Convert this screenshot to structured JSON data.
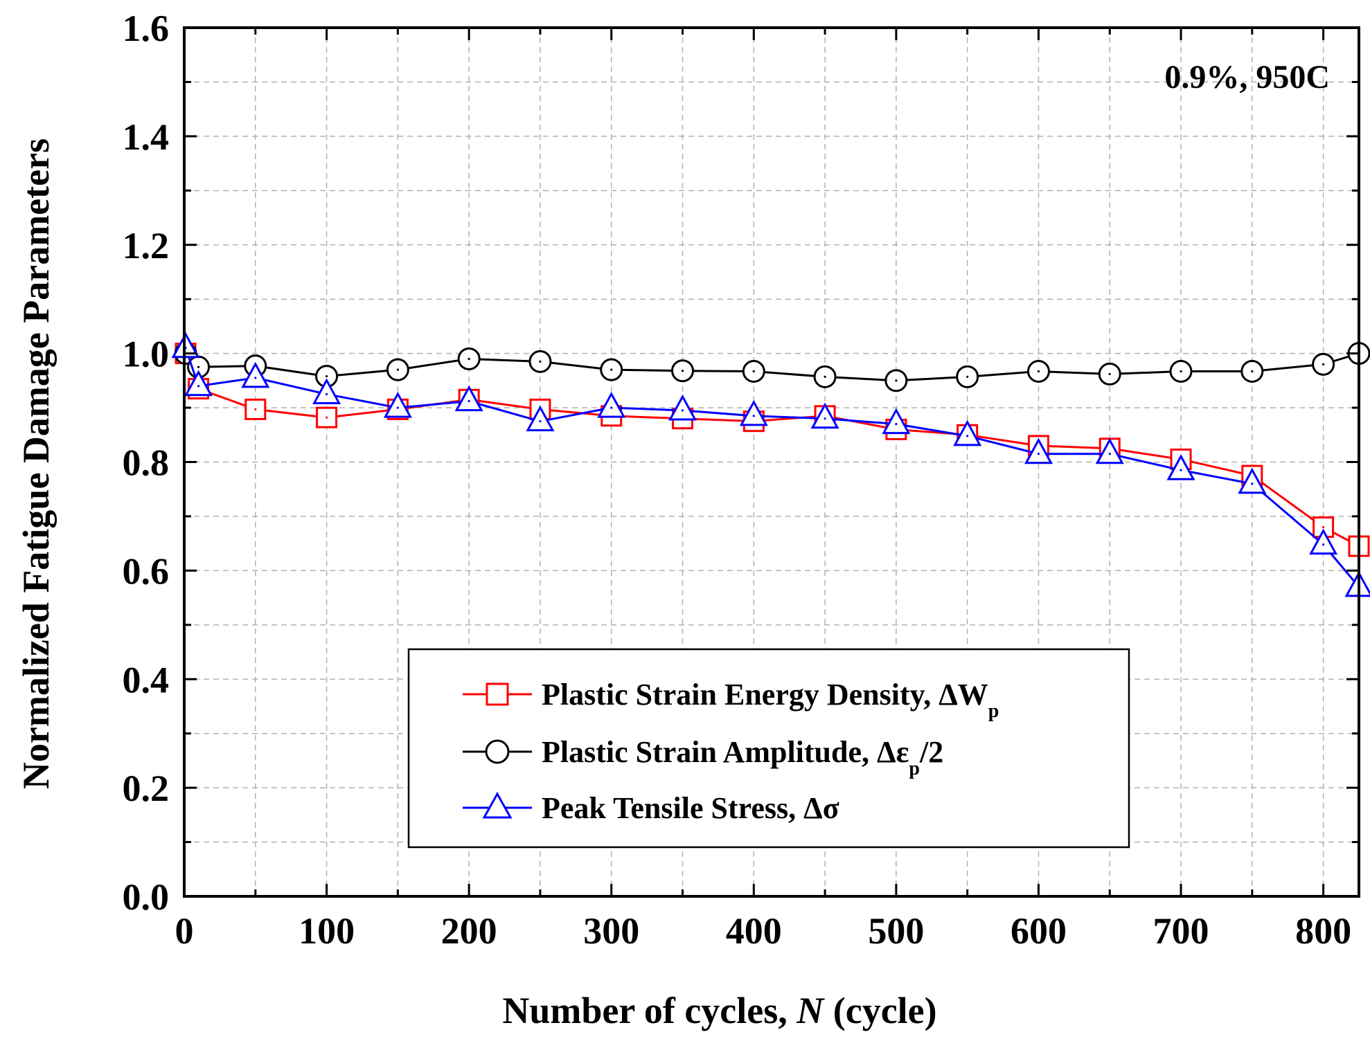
{
  "chart_data": {
    "type": "line",
    "annotation": "0.9%, 950C",
    "xlabel": "Number of cycles, N (cycle)",
    "xlabel_parts": {
      "prefix": "Number of cycles, ",
      "italic": "N",
      "suffix": " (cycle)"
    },
    "ylabel": "Normalized Fatigue Damage Parameters",
    "xlim": [
      0,
      825
    ],
    "ylim": [
      0,
      1.6
    ],
    "x_ticks": [
      0,
      100,
      200,
      300,
      400,
      500,
      600,
      700,
      800
    ],
    "x_tick_labels": [
      "0",
      "100",
      "200",
      "300",
      "400",
      "500",
      "600",
      "700",
      "800"
    ],
    "y_ticks": [
      0.0,
      0.2,
      0.4,
      0.6,
      0.8,
      1.0,
      1.2,
      1.4,
      1.6
    ],
    "y_tick_labels": [
      "0.0",
      "0.2",
      "0.4",
      "0.6",
      "0.8",
      "1.0",
      "1.2",
      "1.4",
      "1.6"
    ],
    "grid": true,
    "legend_position": "lower-center",
    "series": [
      {
        "name": "Plastic Strain Energy Density, ΔWp",
        "label_main": "Plastic Strain Energy Density, ΔW",
        "label_sub": "p",
        "label_tail": "",
        "color": "#ff0000",
        "marker": "square",
        "x": [
          1,
          10,
          50,
          100,
          150,
          200,
          250,
          300,
          350,
          400,
          450,
          500,
          550,
          600,
          650,
          700,
          750,
          800,
          825
        ],
        "y": [
          1.0,
          0.935,
          0.897,
          0.882,
          0.897,
          0.915,
          0.897,
          0.885,
          0.88,
          0.875,
          0.885,
          0.86,
          0.85,
          0.83,
          0.825,
          0.805,
          0.775,
          0.68,
          0.645
        ]
      },
      {
        "name": "Plastic Strain Amplitude, Δεp/2",
        "label_main": "Plastic Strain Amplitude, Δε",
        "label_sub": "p",
        "label_tail": "/2",
        "color": "#000000",
        "marker": "circle",
        "x": [
          1,
          10,
          50,
          100,
          150,
          200,
          250,
          300,
          350,
          400,
          450,
          500,
          550,
          600,
          650,
          700,
          750,
          800,
          825
        ],
        "y": [
          1.0,
          0.975,
          0.977,
          0.958,
          0.97,
          0.99,
          0.985,
          0.97,
          0.968,
          0.967,
          0.957,
          0.95,
          0.957,
          0.967,
          0.962,
          0.967,
          0.967,
          0.98,
          1.0
        ]
      },
      {
        "name": "Peak Tensile Stress, Δσ",
        "label_main": "Peak Tensile Stress, Δσ",
        "label_sub": "",
        "label_tail": "",
        "color": "#0000ff",
        "marker": "triangle",
        "x": [
          1,
          10,
          50,
          100,
          150,
          200,
          250,
          300,
          350,
          400,
          450,
          500,
          550,
          600,
          650,
          700,
          750,
          800,
          825
        ],
        "y": [
          1.01,
          0.94,
          0.955,
          0.925,
          0.9,
          0.912,
          0.875,
          0.9,
          0.895,
          0.885,
          0.88,
          0.87,
          0.848,
          0.815,
          0.815,
          0.785,
          0.76,
          0.648,
          0.57
        ]
      }
    ]
  }
}
